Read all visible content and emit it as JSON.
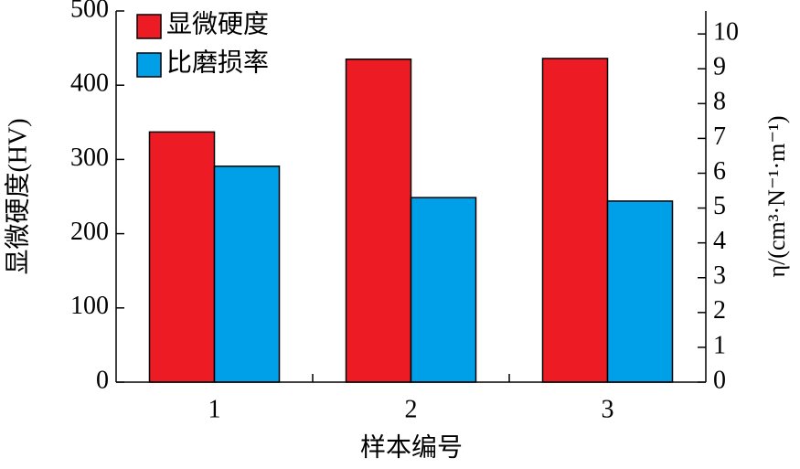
{
  "chart_data": {
    "type": "bar",
    "categories": [
      "1",
      "2",
      "3"
    ],
    "x_label": "样本编号",
    "y_label": "显微硬度(HV)",
    "y2_label": "η/(cm³·N⁻¹·m⁻¹)",
    "series": [
      {
        "name": "显微硬度",
        "color": "#ed1c24",
        "values": [
          337,
          435,
          436
        ]
      },
      {
        "name": "比磨损率",
        "color": "#00a0e9",
        "values": [
          6.2,
          5.3,
          5.2
        ],
        "axis": "y2"
      }
    ],
    "ylim": [
      0,
      500
    ],
    "yticks": [
      0,
      100,
      200,
      300,
      400,
      500
    ],
    "y2lim": [
      0,
      10.66
    ],
    "y2ticks": [
      0,
      1,
      2,
      3,
      4,
      5,
      6,
      7,
      8,
      9,
      10
    ],
    "legend": "top-left"
  }
}
